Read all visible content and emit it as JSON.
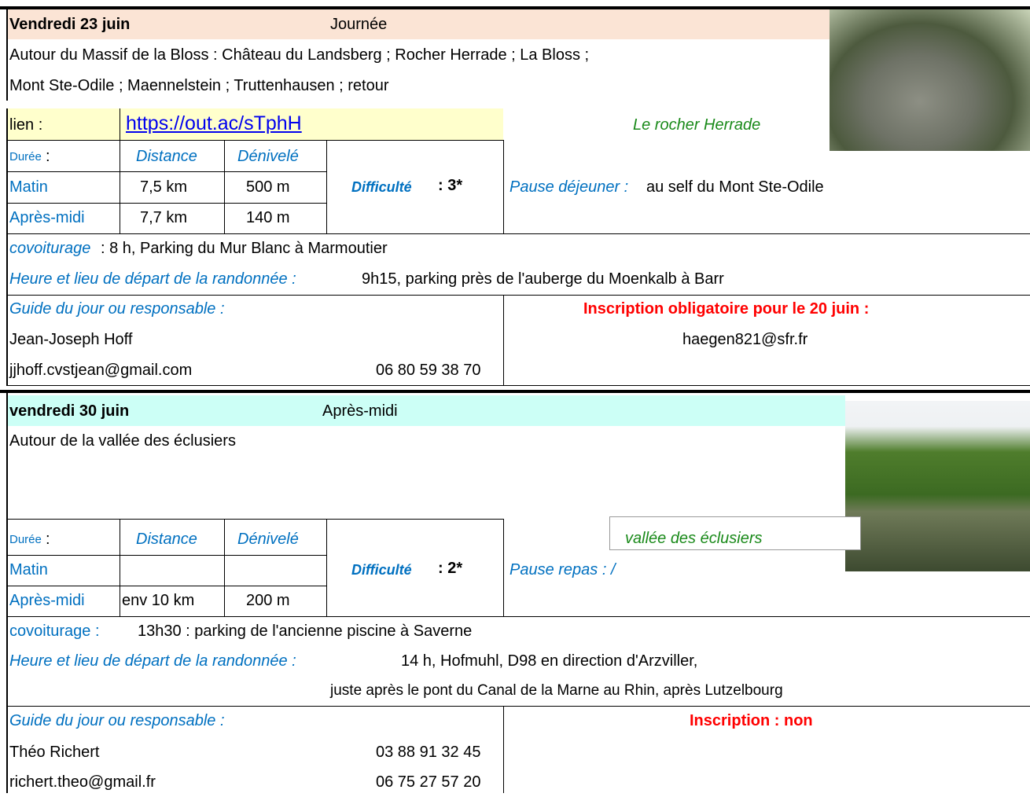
{
  "sections": [
    {
      "date": "Vendredi 23 juin",
      "period": "Journée",
      "description": [
        "Autour du Massif de la Bloss : Château du Landsberg ; Rocher Herrade ; La Bloss ;",
        "Mont Ste-Odile ; Maennelstein ; Truttenhausen ; retour"
      ],
      "link_label": "lien :",
      "link": "https://out.ac/sTphH",
      "photo_caption": "Le rocher Herrade",
      "table": {
        "duration_label": "Durée",
        "colon": ":",
        "headers": [
          "Distance",
          "Dénivelé"
        ],
        "rows": [
          [
            "Matin",
            "7,5 km",
            "500 m"
          ],
          [
            "Après-midi",
            "7,7 km",
            "140 m"
          ]
        ]
      },
      "difficulty_label": "Difficulté",
      "difficulty": ": 3*",
      "pause_label": "Pause déjeuner :",
      "pause": "au self du Mont Ste-Odile",
      "carpool_label": "covoiturage",
      "carpool": ": 8 h, Parking du Mur Blanc à Marmoutier",
      "start_label": "Heure et lieu de départ de la randonnée :",
      "start": [
        "9h15, parking près  de l'auberge du Moenkalb à Barr"
      ],
      "guide_label": "Guide du jour ou responsable :",
      "guide_name": "Jean-Joseph Hoff",
      "guide_contact": [
        "jjhoff.cvstjean@gmail.com",
        "06 80 59 38 70"
      ],
      "registration": "Inscription  obligatoire  pour le 20 juin :",
      "registration_contact": "haegen821@sfr.fr"
    },
    {
      "date": "vendredi 30 juin",
      "period": "Après-midi",
      "description": [
        "Autour de la vallée des éclusiers"
      ],
      "photo_caption": "vallée des éclusiers",
      "table": {
        "duration_label": "Durée",
        "colon": ":",
        "headers": [
          "Distance",
          "Dénivelé"
        ],
        "rows": [
          [
            "Matin"
          ],
          [
            "Après-midi",
            "env 10 km",
            "200 m"
          ]
        ]
      },
      "difficulty_label": "Difficulté",
      "difficulty": ": 2*",
      "pause_label": "Pause repas : /",
      "carpool_label": "covoiturage :",
      "carpool": "13h30 : parking de l'ancienne piscine à Saverne",
      "start_label": "Heure et lieu de départ de la randonnée :",
      "start": [
        "14 h, Hofmuhl, D98 en direction d'Arzviller,",
        "juste après le pont du Canal de la Marne au Rhin, après Lutzelbourg"
      ],
      "guide_label": "Guide du jour ou responsable :",
      "guide_name": "Théo Richert",
      "guide_phone": "03 88 91 32 45",
      "guide_contact": [
        "richert.theo@gmail.fr",
        "06 75 27 57 20"
      ],
      "registration": "Inscription  :  non"
    }
  ]
}
